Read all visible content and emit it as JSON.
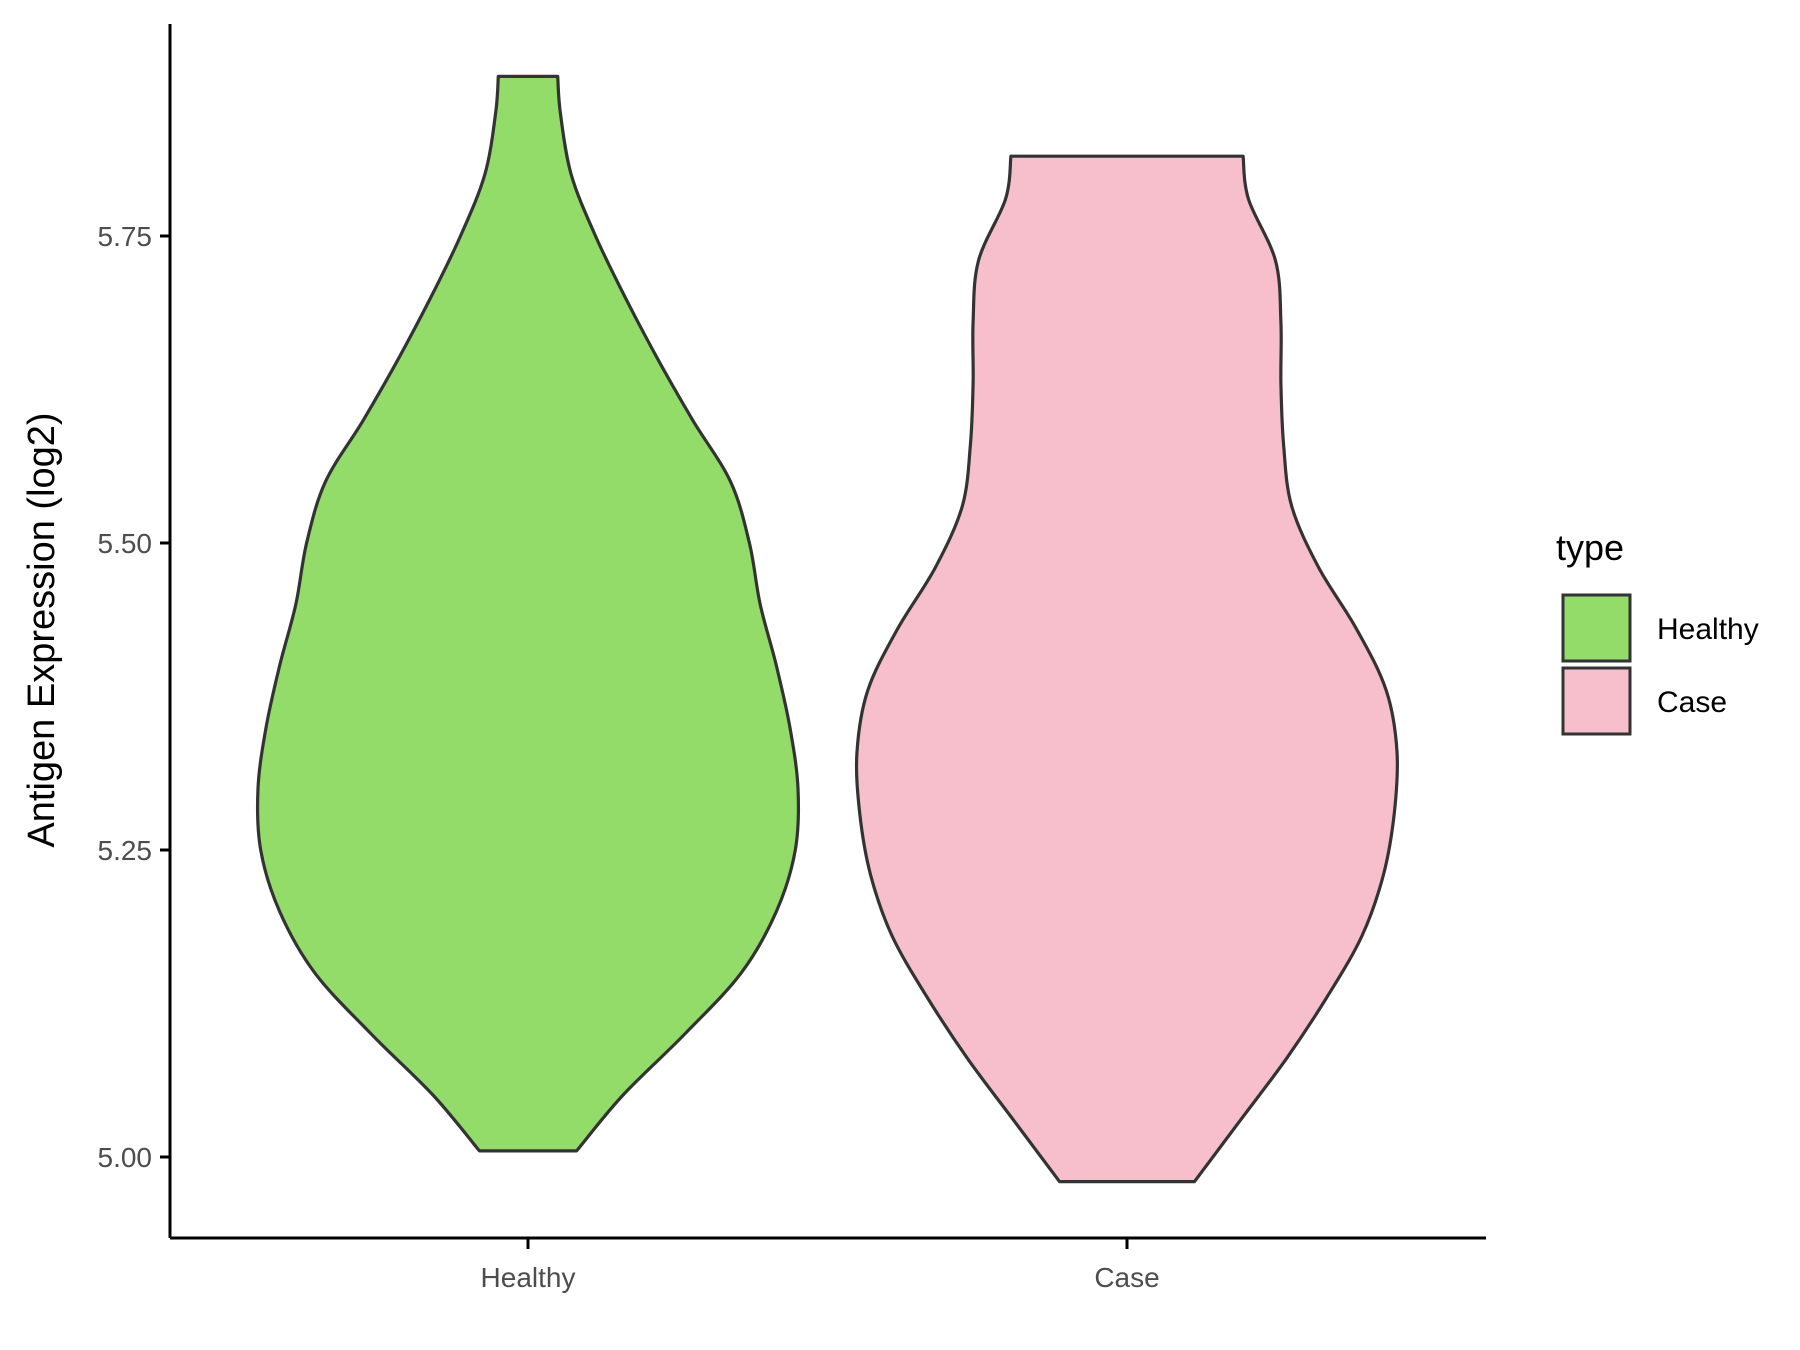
{
  "chart_data": {
    "type": "violin",
    "title": "",
    "xlabel": "",
    "ylabel": "Antigen Expression (log2)",
    "categories": [
      "Healthy",
      "Case"
    ],
    "ylim": [
      4.93,
      5.92
    ],
    "yticks": [
      "5.00",
      "5.25",
      "5.50",
      "5.75"
    ],
    "ytick_values": [
      5.0,
      5.25,
      5.5,
      5.75
    ],
    "grid": false,
    "legend": {
      "title": "type",
      "position": "right",
      "entries": [
        {
          "label": "Healthy",
          "color": "#93dc6a"
        },
        {
          "label": "Case",
          "color": "#f7bfcb"
        }
      ]
    },
    "series": [
      {
        "category": "Healthy",
        "color": "#93dc6a",
        "min": 5.005,
        "max": 5.88,
        "density_profile": [
          [
            5.005,
            0.18
          ],
          [
            5.05,
            0.35
          ],
          [
            5.1,
            0.58
          ],
          [
            5.15,
            0.79
          ],
          [
            5.2,
            0.92
          ],
          [
            5.25,
            0.99
          ],
          [
            5.3,
            1.0
          ],
          [
            5.35,
            0.97
          ],
          [
            5.4,
            0.92
          ],
          [
            5.45,
            0.86
          ],
          [
            5.5,
            0.82
          ],
          [
            5.55,
            0.75
          ],
          [
            5.6,
            0.61
          ],
          [
            5.65,
            0.48
          ],
          [
            5.7,
            0.36
          ],
          [
            5.75,
            0.25
          ],
          [
            5.8,
            0.16
          ],
          [
            5.85,
            0.12
          ],
          [
            5.88,
            0.11
          ]
        ]
      },
      {
        "category": "Case",
        "color": "#f7bfcb",
        "min": 4.98,
        "max": 5.815,
        "density_profile": [
          [
            4.98,
            0.25
          ],
          [
            5.03,
            0.42
          ],
          [
            5.08,
            0.59
          ],
          [
            5.13,
            0.74
          ],
          [
            5.18,
            0.87
          ],
          [
            5.23,
            0.95
          ],
          [
            5.28,
            0.99
          ],
          [
            5.33,
            1.0
          ],
          [
            5.38,
            0.96
          ],
          [
            5.43,
            0.85
          ],
          [
            5.48,
            0.71
          ],
          [
            5.53,
            0.61
          ],
          [
            5.58,
            0.58
          ],
          [
            5.63,
            0.57
          ],
          [
            5.68,
            0.57
          ],
          [
            5.73,
            0.55
          ],
          [
            5.78,
            0.45
          ],
          [
            5.815,
            0.43
          ]
        ]
      }
    ]
  }
}
